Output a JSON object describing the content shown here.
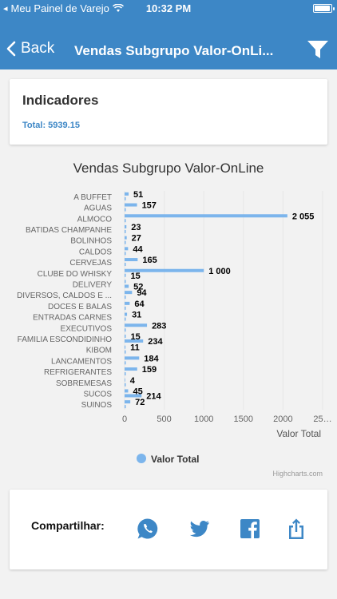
{
  "status_bar": {
    "carrier": "Meu Painel de Varejo",
    "time": "10:32 PM",
    "battery_level": 0.95
  },
  "header": {
    "back_label": "Back",
    "title": "Vendas Subgrupo Valor-OnLi...",
    "colors": {
      "background": "#3d87c6",
      "text": "#ffffff"
    },
    "icons": {
      "back": "chevron-left-icon",
      "filter": "filter-icon"
    }
  },
  "indicators": {
    "title": "Indicadores",
    "total_text": "Total: 5939.15"
  },
  "chart_data": {
    "type": "bar",
    "orientation": "horizontal",
    "title": "Vendas Subgrupo Valor-OnLine",
    "ylabel": "Valor Total",
    "xlim": [
      0,
      2500
    ],
    "x_ticks": [
      "0",
      "500",
      "1000",
      "1500",
      "2000",
      "25…"
    ],
    "grid": true,
    "legend_position": "bottom",
    "color": "#7cb5ec",
    "categories": [
      "A BUFFET",
      "AGUAS",
      "ALMOCO",
      "BATIDAS CHAMPANHE",
      "BOLINHOS",
      "CALDOS",
      "CERVEJAS",
      "CLUBE DO WHISKY",
      "DELIVERY",
      "DIVERSOS, CALDOS E ...",
      "DOCES E BALAS",
      "ENTRADAS CARNES",
      "EXECUTIVOS",
      "FAMILIA ESCONDIDINHO",
      "KIBOM",
      "LANCAMENTOS",
      "REFRIGERANTES",
      "SOBREMESAS",
      "SUCOS",
      "SUINOS"
    ],
    "series": [
      {
        "name": "Valor Total",
        "values": [
          51,
          157,
          2055,
          23,
          27,
          44,
          165,
          1000,
          15,
          94,
          64,
          31,
          283,
          15,
          11,
          184,
          159,
          4,
          45,
          72
        ]
      },
      {
        "values": [
          15,
          15,
          15,
          15,
          15,
          15,
          15,
          15,
          52,
          15,
          15,
          15,
          15,
          234,
          15,
          15,
          15,
          15,
          214,
          15
        ]
      }
    ],
    "data_labels": [
      [
        "51",
        ""
      ],
      [
        "157",
        ""
      ],
      [
        "2 055",
        ""
      ],
      [
        "23",
        ""
      ],
      [
        "27",
        ""
      ],
      [
        "44",
        ""
      ],
      [
        "165",
        ""
      ],
      [
        "1 000",
        "15"
      ],
      [
        "",
        "52"
      ],
      [
        "94",
        ""
      ],
      [
        "64",
        ""
      ],
      [
        "31",
        ""
      ],
      [
        "283",
        ""
      ],
      [
        "15",
        "234"
      ],
      [
        "11",
        ""
      ],
      [
        "184",
        ""
      ],
      [
        "159",
        ""
      ],
      [
        "4",
        ""
      ],
      [
        "45",
        "214"
      ],
      [
        "72",
        ""
      ]
    ],
    "legend_label": "Valor Total"
  },
  "credits": "Highcharts.com",
  "share": {
    "label": "Compartilhar:",
    "icons": [
      "whatsapp-icon",
      "twitter-icon",
      "facebook-icon",
      "share-icon"
    ],
    "color": "#3d87c6"
  }
}
